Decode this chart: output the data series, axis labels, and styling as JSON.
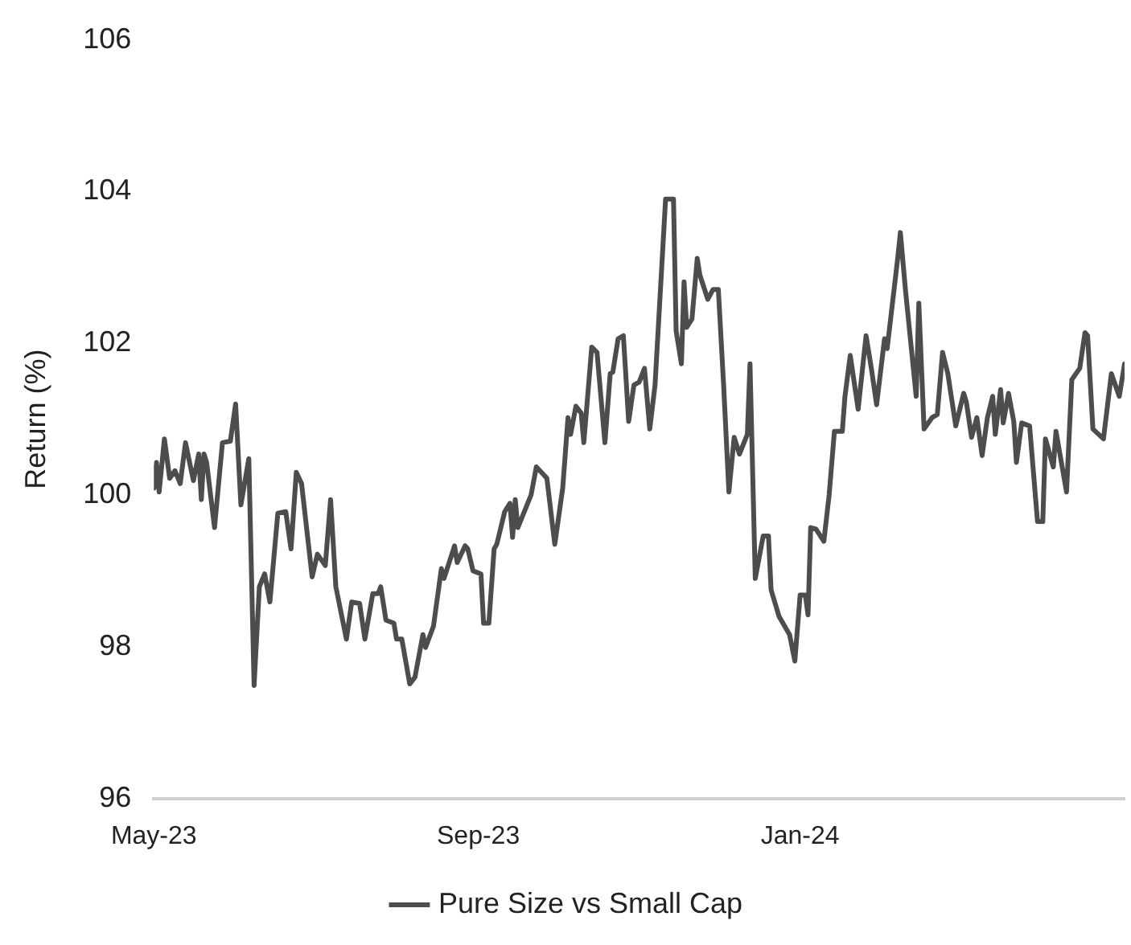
{
  "chart_data": {
    "type": "line",
    "ylabel": "Return (%)",
    "xlim": [
      "2023-05-01",
      "2024-05-03"
    ],
    "xticks": [
      {
        "value": "2023-05-01",
        "label": "May-23"
      },
      {
        "value": "2023-09-01",
        "label": "Sep-23"
      },
      {
        "value": "2024-01-01",
        "label": "Jan-24"
      }
    ],
    "ylim": [
      96,
      106
    ],
    "yticks": [
      96,
      98,
      100,
      102,
      104,
      106
    ],
    "grid": false,
    "legend": "bottom",
    "marker": "none",
    "line_style": "solid",
    "x": [
      "2023-05-01",
      "2023-05-02",
      "2023-05-03",
      "2023-05-05",
      "2023-05-07",
      "2023-05-09",
      "2023-05-11",
      "2023-05-13",
      "2023-05-14",
      "2023-05-16",
      "2023-05-18",
      "2023-05-19",
      "2023-05-20",
      "2023-05-21",
      "2023-05-24",
      "2023-05-27",
      "2023-05-30",
      "2023-06-01",
      "2023-06-03",
      "2023-06-06",
      "2023-06-08",
      "2023-06-10",
      "2023-06-12",
      "2023-06-14",
      "2023-06-17",
      "2023-06-20",
      "2023-06-22",
      "2023-06-24",
      "2023-06-26",
      "2023-06-30",
      "2023-07-02",
      "2023-07-05",
      "2023-07-07",
      "2023-07-09",
      "2023-07-13",
      "2023-07-15",
      "2023-07-18",
      "2023-07-20",
      "2023-07-23",
      "2023-07-25",
      "2023-07-26",
      "2023-07-28",
      "2023-07-31",
      "2023-08-01",
      "2023-08-03",
      "2023-08-06",
      "2023-08-08",
      "2023-08-11",
      "2023-08-12",
      "2023-08-15",
      "2023-08-18",
      "2023-08-19",
      "2023-08-23",
      "2023-08-24",
      "2023-08-27",
      "2023-08-28",
      "2023-08-30",
      "2023-09-02",
      "2023-09-03",
      "2023-09-05",
      "2023-09-07",
      "2023-09-08",
      "2023-09-11",
      "2023-09-13",
      "2023-09-14",
      "2023-09-15",
      "2023-09-16",
      "2023-09-21",
      "2023-09-23",
      "2023-09-26",
      "2023-09-27",
      "2023-09-30",
      "2023-10-03",
      "2023-10-05",
      "2023-10-06",
      "2023-10-08",
      "2023-10-10",
      "2023-10-11",
      "2023-10-14",
      "2023-10-16",
      "2023-10-19",
      "2023-10-21",
      "2023-10-22",
      "2023-10-24",
      "2023-10-26",
      "2023-10-28",
      "2023-10-30",
      "2023-11-01",
      "2023-11-03",
      "2023-11-05",
      "2023-11-07",
      "2023-11-11",
      "2023-11-14",
      "2023-11-15",
      "2023-11-17",
      "2023-11-18",
      "2023-11-19",
      "2023-11-21",
      "2023-11-23",
      "2023-11-24",
      "2023-11-27",
      "2023-11-29",
      "2023-12-01",
      "2023-12-03",
      "2023-12-05",
      "2023-12-07",
      "2023-12-09",
      "2023-12-12",
      "2023-12-13",
      "2023-12-15",
      "2023-12-18",
      "2023-12-20",
      "2023-12-21",
      "2023-12-24",
      "2023-12-28",
      "2023-12-30",
      "2024-01-01",
      "2024-01-03",
      "2024-01-04",
      "2024-01-05",
      "2024-01-07",
      "2024-01-10",
      "2024-01-12",
      "2024-01-14",
      "2024-01-17",
      "2024-01-18",
      "2024-01-20",
      "2024-01-23",
      "2024-01-26",
      "2024-01-28",
      "2024-01-30",
      "2024-02-02",
      "2024-02-03",
      "2024-02-07",
      "2024-02-08",
      "2024-02-10",
      "2024-02-14",
      "2024-02-15",
      "2024-02-17",
      "2024-02-20",
      "2024-02-22",
      "2024-02-24",
      "2024-02-26",
      "2024-02-29",
      "2024-03-03",
      "2024-03-04",
      "2024-03-06",
      "2024-03-08",
      "2024-03-10",
      "2024-03-12",
      "2024-03-14",
      "2024-03-15",
      "2024-03-17",
      "2024-03-18",
      "2024-03-20",
      "2024-03-22",
      "2024-03-23",
      "2024-03-25",
      "2024-03-28",
      "2024-03-31",
      "2024-04-02",
      "2024-04-03",
      "2024-04-06",
      "2024-04-07",
      "2024-04-11",
      "2024-04-13",
      "2024-04-16",
      "2024-04-18",
      "2024-04-19",
      "2024-04-21",
      "2024-04-25",
      "2024-04-28",
      "2024-05-01",
      "2024-05-03"
    ],
    "series": [
      {
        "name": "Pure Size vs Small Cap",
        "color": "#4d4d4d",
        "values": [
          100.09,
          100.43,
          100.04,
          100.74,
          100.22,
          100.32,
          100.15,
          100.69,
          100.52,
          100.19,
          100.54,
          99.94,
          100.54,
          100.43,
          99.57,
          100.69,
          100.71,
          101.2,
          99.87,
          100.48,
          97.49,
          98.79,
          98.96,
          98.59,
          99.76,
          99.78,
          99.29,
          100.3,
          100.15,
          98.92,
          99.22,
          99.07,
          99.94,
          98.79,
          98.1,
          98.59,
          98.57,
          98.1,
          98.7,
          98.7,
          98.79,
          98.35,
          98.31,
          98.1,
          98.1,
          97.51,
          97.6,
          98.16,
          97.99,
          98.27,
          99.03,
          98.9,
          99.33,
          99.11,
          99.33,
          99.29,
          99.0,
          98.96,
          98.31,
          98.31,
          99.29,
          99.35,
          99.78,
          99.89,
          99.44,
          99.94,
          99.57,
          100.0,
          100.37,
          100.26,
          100.22,
          99.35,
          100.09,
          101.02,
          100.8,
          101.17,
          101.08,
          100.69,
          101.95,
          101.88,
          100.69,
          101.6,
          101.62,
          102.06,
          102.1,
          100.97,
          101.45,
          101.49,
          101.67,
          100.87,
          101.45,
          103.9,
          103.9,
          102.16,
          101.73,
          102.81,
          102.21,
          102.32,
          103.12,
          102.9,
          102.58,
          102.71,
          102.71,
          101.45,
          100.04,
          100.76,
          100.54,
          100.8,
          101.73,
          98.9,
          99.46,
          99.46,
          98.75,
          98.4,
          98.16,
          97.81,
          98.68,
          98.68,
          98.42,
          99.57,
          99.55,
          99.39,
          100.0,
          100.84,
          100.84,
          101.3,
          101.84,
          101.13,
          102.1,
          101.67,
          101.19,
          102.06,
          101.93,
          103.12,
          103.46,
          102.68,
          101.3,
          102.53,
          100.87,
          101.02,
          101.06,
          101.88,
          101.6,
          100.91,
          101.34,
          101.23,
          100.76,
          101.02,
          100.52,
          101.02,
          101.3,
          100.8,
          101.39,
          100.95,
          101.34,
          100.97,
          100.43,
          100.95,
          100.91,
          99.65,
          99.65,
          100.74,
          100.37,
          100.84,
          100.04,
          101.52,
          101.67,
          102.14,
          102.1,
          100.87,
          100.74,
          101.6,
          101.3,
          101.73
        ]
      }
    ]
  }
}
